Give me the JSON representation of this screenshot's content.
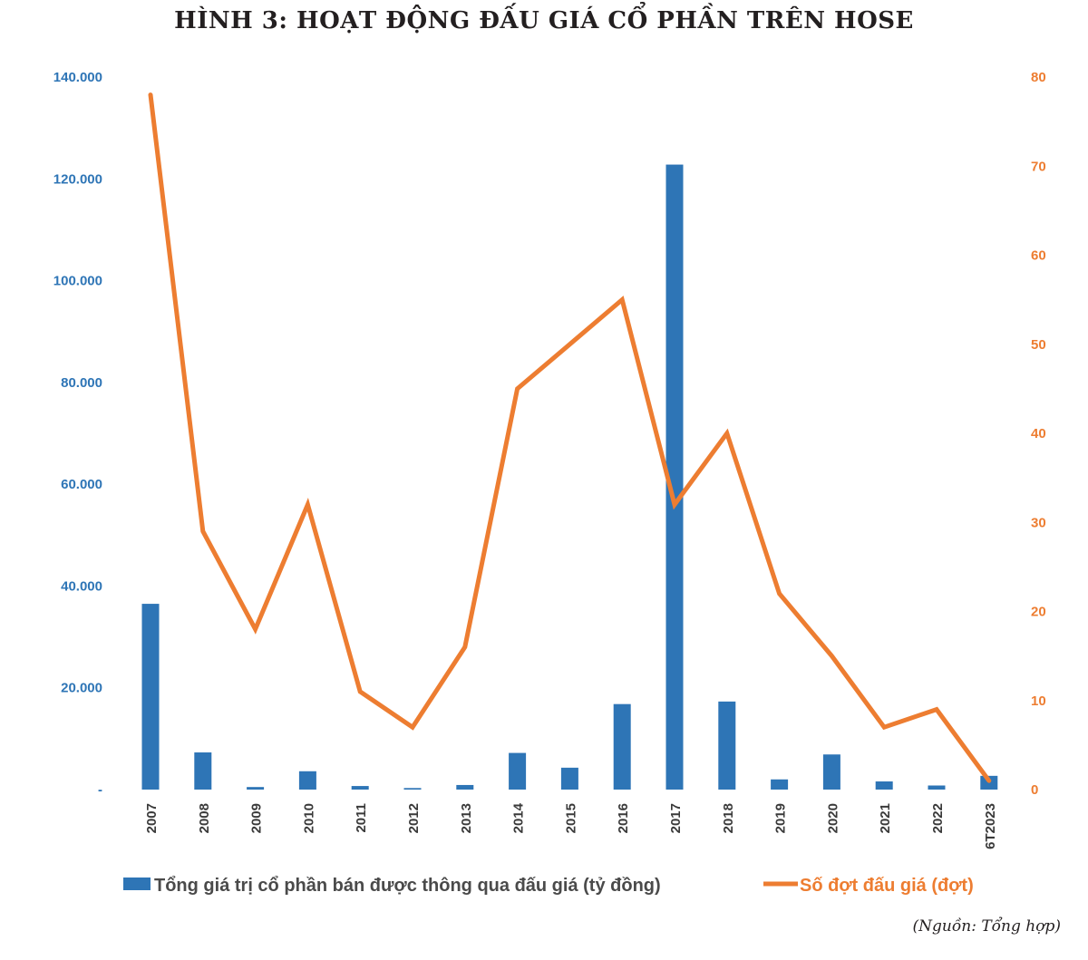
{
  "chart_data": {
    "type": "bar",
    "title": "HÌNH 3: HOẠT ĐỘNG ĐẤU GIÁ CỔ PHẦN TRÊN HOSE",
    "categories": [
      "2007",
      "2008",
      "2009",
      "2010",
      "2011",
      "2012",
      "2013",
      "2014",
      "2015",
      "2016",
      "2017",
      "2018",
      "2019",
      "2020",
      "2021",
      "2022",
      "6T2023"
    ],
    "series": [
      {
        "name": "Tổng giá trị cổ phần bán được thông qua đấu giá (tỷ đồng)",
        "type": "bar",
        "axis": "left",
        "color": "#2e75b6",
        "values": [
          36500,
          7300,
          500,
          3600,
          700,
          300,
          900,
          7200,
          4300,
          16800,
          122800,
          17300,
          2000,
          6900,
          1600,
          800,
          2700
        ]
      },
      {
        "name": "Số đợt đấu giá (đợt)",
        "type": "line",
        "axis": "right",
        "color": "#ed7d31",
        "values": [
          78,
          29,
          18,
          32,
          11,
          7,
          16,
          45,
          50,
          55,
          32,
          40,
          22,
          15,
          7,
          9,
          1
        ]
      }
    ],
    "y_left": {
      "ylim": [
        0,
        140000
      ],
      "tick_values": [
        0,
        20000,
        40000,
        60000,
        80000,
        100000,
        120000,
        140000
      ],
      "tick_labels": [
        "-",
        "20.000",
        "40.000",
        "60.000",
        "80.000",
        "100.000",
        "120.000",
        "140.000"
      ]
    },
    "y_right": {
      "ylim": [
        0,
        80
      ],
      "tick_values": [
        0,
        10,
        20,
        30,
        40,
        50,
        60,
        70,
        80
      ],
      "tick_labels": [
        "0",
        "10",
        "20",
        "30",
        "40",
        "50",
        "60",
        "70",
        "80"
      ]
    },
    "grid": false,
    "legend_position": "bottom"
  },
  "source": "(Nguồn: Tổng hợp)"
}
